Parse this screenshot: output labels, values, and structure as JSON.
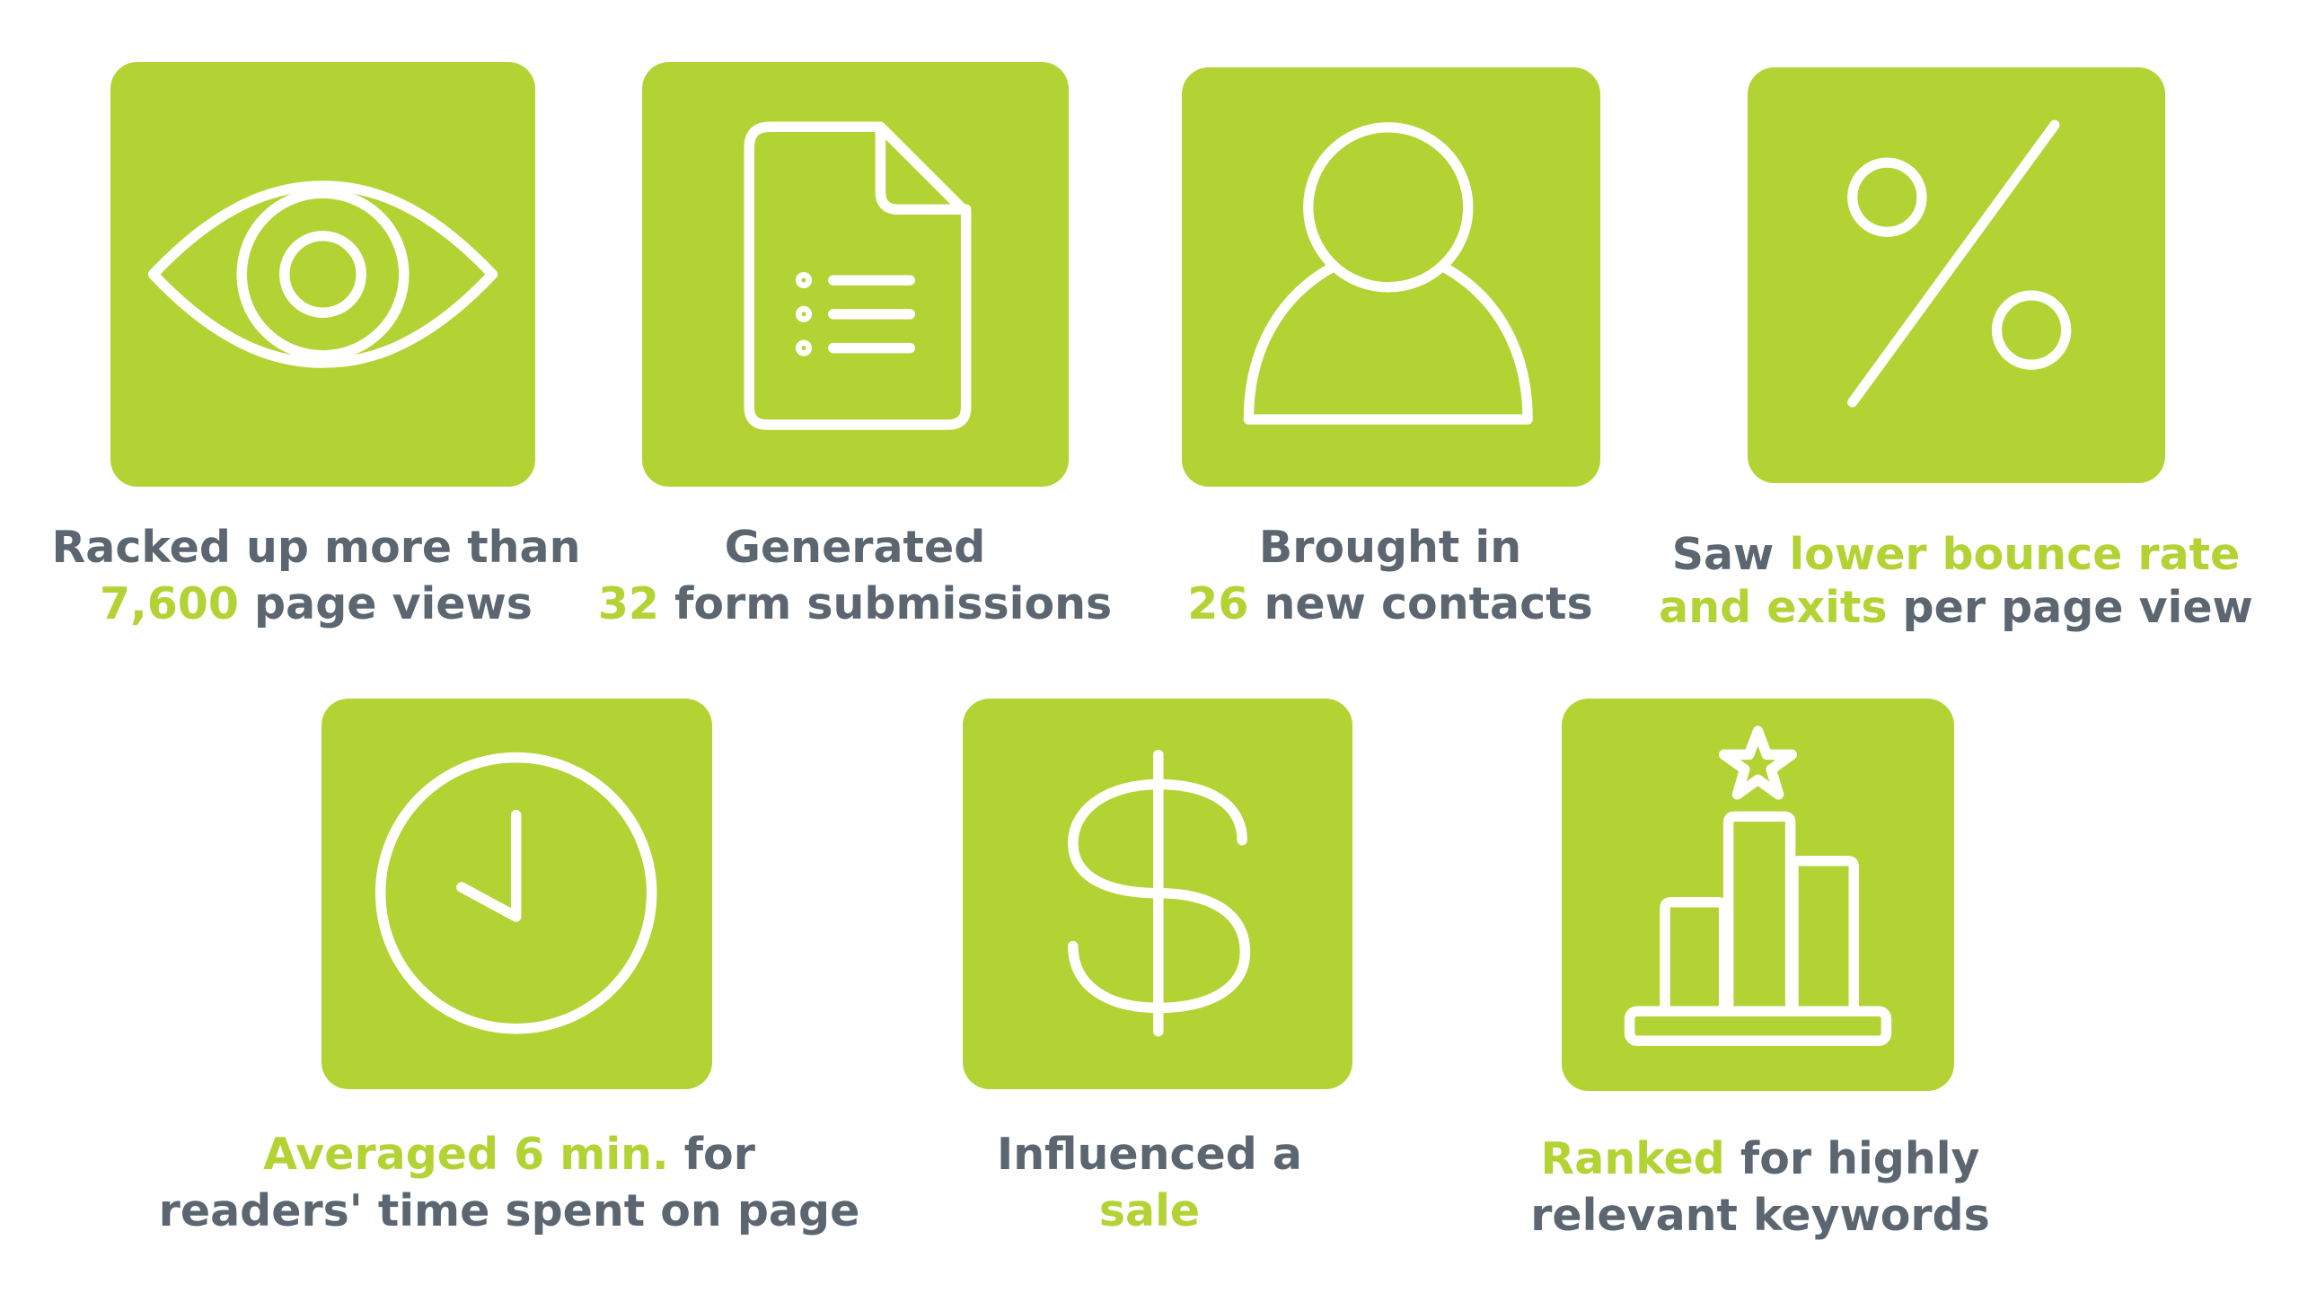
{
  "colors": {
    "accent": "#b3d335",
    "text": "#5b6670",
    "icon": "#ffffff"
  },
  "stats": [
    {
      "icon": "eye-icon",
      "line1": [
        "",
        "Racked up more than"
      ],
      "line2": [
        "7,600",
        " page views"
      ]
    },
    {
      "icon": "document-icon",
      "line1": [
        "",
        "Generated"
      ],
      "line2": [
        "32",
        " form submissions"
      ]
    },
    {
      "icon": "person-icon",
      "line1": [
        "",
        "Brought in"
      ],
      "line2": [
        "26",
        " new contacts"
      ]
    },
    {
      "icon": "percent-icon",
      "line1": [
        "Saw ",
        "lower bounce rate"
      ],
      "line2": [
        "and exits",
        " per page view"
      ]
    },
    {
      "icon": "clock-icon",
      "line1": [
        "Averaged 6 min.",
        " for"
      ],
      "line2": [
        "",
        "readers' time spent on page"
      ]
    },
    {
      "icon": "dollar-icon",
      "line1": [
        "",
        "Influenced a"
      ],
      "line2": [
        "sale",
        ""
      ]
    },
    {
      "icon": "ranking-icon",
      "line1": [
        "Ranked",
        " for highly"
      ],
      "line2": [
        "",
        "relevant keywords"
      ]
    }
  ]
}
